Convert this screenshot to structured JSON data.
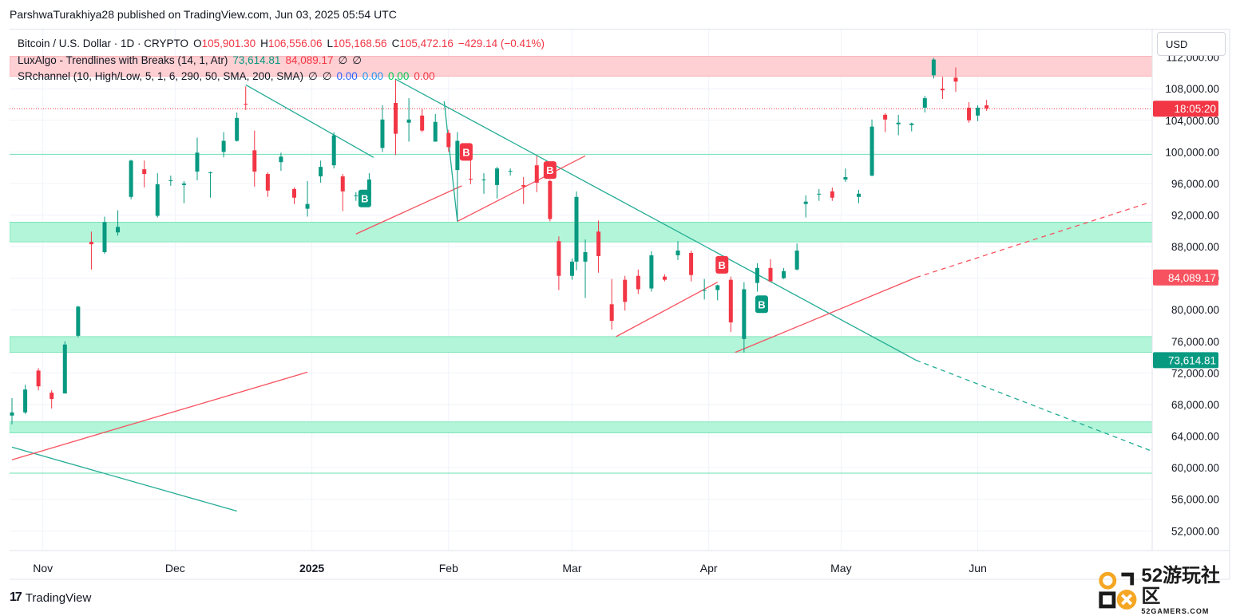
{
  "header": {
    "published_by": "ParshwaTurakhiya28 published on TradingView.com, Jun 03, 2025 05:54 UTC"
  },
  "legend": {
    "symbol": "Bitcoin / U.S. Dollar · 1D · CRYPTO",
    "o_label": "O",
    "o_value": "105,901.30",
    "h_label": "H",
    "h_value": "106,556.06",
    "l_label": "L",
    "l_value": "105,168.56",
    "c_label": "C",
    "c_value": "105,472.16",
    "change": "−429.14 (−0.41%)",
    "luxalgo_name": "LuxAlgo - Trendlines with Breaks (14, 1, Atr)",
    "luxalgo_v1": "73,614.81",
    "luxalgo_v2": "84,089.17",
    "luxalgo_v3": "∅",
    "luxalgo_v4": "∅",
    "sr_name": "SRchannel (10, High/Low, 5, 1, 6, 290, 50, SMA, 200, SMA)",
    "sr_v1": "∅",
    "sr_v2": "∅",
    "sr_v3": "0.00",
    "sr_v4": "0.00",
    "sr_v5": "0.00",
    "sr_v6": "0.00"
  },
  "currency_button": "USD",
  "colors": {
    "up": "#089981",
    "down": "#f23645",
    "support_zone": "#b2f5d9",
    "resistance_zone": "#ffd0d3",
    "trend_down": "#22ab94",
    "trend_up": "#f7525f"
  },
  "price_labels": {
    "countdown": "18:05:20",
    "upper_trend": "84,089.17",
    "lower_trend": "73,614.81"
  },
  "chart_data": {
    "type": "candlestick",
    "title": "Bitcoin / U.S. Dollar · 1D · CRYPTO",
    "y_axis": {
      "ticks": [
        "112,000.00",
        "108,000.00",
        "104,000.00",
        "100,000.00",
        "96,000.00",
        "92,000.00",
        "88,000.00",
        "84,000.00",
        "80,000.00",
        "76,000.00",
        "72,000.00",
        "68,000.00",
        "64,000.00",
        "60,000.00",
        "56,000.00",
        "52,000.00"
      ],
      "ylim": [
        49500,
        115500
      ]
    },
    "x_axis": {
      "ticks": [
        "Nov",
        "Dec",
        "2025",
        "Feb",
        "Mar",
        "Apr",
        "May",
        "Jun"
      ],
      "tick_dates": [
        "2024-11-01",
        "2024-12-01",
        "2025-01-01",
        "2025-02-01",
        "2025-03-01",
        "2025-04-01",
        "2025-05-01",
        "2025-06-01"
      ],
      "xlim": [
        "2024-10-25",
        "2025-07-10"
      ]
    },
    "candles": [
      {
        "d": "2024-10-25",
        "o": 66600,
        "h": 68800,
        "l": 65500,
        "c": 67000
      },
      {
        "d": "2024-10-28",
        "o": 67000,
        "h": 70500,
        "l": 66800,
        "c": 69900
      },
      {
        "d": "2024-10-31",
        "o": 72300,
        "h": 72600,
        "l": 69800,
        "c": 70300
      },
      {
        "d": "2024-11-03",
        "o": 69500,
        "h": 69800,
        "l": 67500,
        "c": 68700
      },
      {
        "d": "2024-11-06",
        "o": 69400,
        "h": 76000,
        "l": 69400,
        "c": 75600
      },
      {
        "d": "2024-11-09",
        "o": 76700,
        "h": 80500,
        "l": 76500,
        "c": 80400
      },
      {
        "d": "2024-11-12",
        "o": 88600,
        "h": 89900,
        "l": 85100,
        "c": 88300
      },
      {
        "d": "2024-11-15",
        "o": 87300,
        "h": 91800,
        "l": 87100,
        "c": 91100
      },
      {
        "d": "2024-11-18",
        "o": 89800,
        "h": 92600,
        "l": 89400,
        "c": 90500
      },
      {
        "d": "2024-11-21",
        "o": 94300,
        "h": 99000,
        "l": 94000,
        "c": 98900
      },
      {
        "d": "2024-11-24",
        "o": 97800,
        "h": 98900,
        "l": 95500,
        "c": 97200
      },
      {
        "d": "2024-11-27",
        "o": 91900,
        "h": 97300,
        "l": 91700,
        "c": 95900
      },
      {
        "d": "2024-11-30",
        "o": 96400,
        "h": 97000,
        "l": 95700,
        "c": 96400
      },
      {
        "d": "2024-12-03",
        "o": 95800,
        "h": 96300,
        "l": 93500,
        "c": 96000
      },
      {
        "d": "2024-12-06",
        "o": 97500,
        "h": 101800,
        "l": 96400,
        "c": 99900
      },
      {
        "d": "2024-12-09",
        "o": 97400,
        "h": 97500,
        "l": 94200,
        "c": 97400
      },
      {
        "d": "2024-12-12",
        "o": 100000,
        "h": 102500,
        "l": 99300,
        "c": 101400
      },
      {
        "d": "2024-12-15",
        "o": 101400,
        "h": 105000,
        "l": 101300,
        "c": 104300
      },
      {
        "d": "2024-12-17",
        "o": 106100,
        "h": 108300,
        "l": 105300,
        "c": 106000
      },
      {
        "d": "2024-12-19",
        "o": 100200,
        "h": 102700,
        "l": 95600,
        "c": 97500
      },
      {
        "d": "2024-12-22",
        "o": 97200,
        "h": 97400,
        "l": 94300,
        "c": 95100
      },
      {
        "d": "2024-12-25",
        "o": 98700,
        "h": 99900,
        "l": 97600,
        "c": 99400
      },
      {
        "d": "2024-12-28",
        "o": 95300,
        "h": 95500,
        "l": 93400,
        "c": 94200
      },
      {
        "d": "2024-12-31",
        "o": 92800,
        "h": 96300,
        "l": 91800,
        "c": 93400
      },
      {
        "d": "2025-01-03",
        "o": 96900,
        "h": 98900,
        "l": 96100,
        "c": 98100
      },
      {
        "d": "2025-01-06",
        "o": 98300,
        "h": 102500,
        "l": 97900,
        "c": 102100
      },
      {
        "d": "2025-01-08",
        "o": 96900,
        "h": 97200,
        "l": 92500,
        "c": 95000
      },
      {
        "d": "2025-01-11",
        "o": 94500,
        "h": 94900,
        "l": 93800,
        "c": 94500
      },
      {
        "d": "2025-01-14",
        "o": 94500,
        "h": 97300,
        "l": 94400,
        "c": 96500
      },
      {
        "d": "2025-01-17",
        "o": 100500,
        "h": 105900,
        "l": 100000,
        "c": 104100
      },
      {
        "d": "2025-01-20",
        "o": 106200,
        "h": 109100,
        "l": 99600,
        "c": 102300
      },
      {
        "d": "2025-01-23",
        "o": 103700,
        "h": 106800,
        "l": 101300,
        "c": 104100
      },
      {
        "d": "2025-01-26",
        "o": 104600,
        "h": 105500,
        "l": 102500,
        "c": 102700
      },
      {
        "d": "2025-01-29",
        "o": 101300,
        "h": 104800,
        "l": 101300,
        "c": 103800
      },
      {
        "d": "2025-02-01",
        "o": 102400,
        "h": 102800,
        "l": 100000,
        "c": 100600
      },
      {
        "d": "2025-02-03",
        "o": 97700,
        "h": 102500,
        "l": 91200,
        "c": 101400
      },
      {
        "d": "2025-02-06",
        "o": 96600,
        "h": 99300,
        "l": 95900,
        "c": 96500
      },
      {
        "d": "2025-02-09",
        "o": 96500,
        "h": 97300,
        "l": 94700,
        "c": 96500
      },
      {
        "d": "2025-02-12",
        "o": 95800,
        "h": 98100,
        "l": 94100,
        "c": 97900
      },
      {
        "d": "2025-02-15",
        "o": 97500,
        "h": 97900,
        "l": 97000,
        "c": 97600
      },
      {
        "d": "2025-02-18",
        "o": 95800,
        "h": 96800,
        "l": 93400,
        "c": 95600
      },
      {
        "d": "2025-02-21",
        "o": 98300,
        "h": 99500,
        "l": 94900,
        "c": 96100
      },
      {
        "d": "2025-02-24",
        "o": 96300,
        "h": 96500,
        "l": 91200,
        "c": 91500
      },
      {
        "d": "2025-02-26",
        "o": 88700,
        "h": 89300,
        "l": 82500,
        "c": 84300
      },
      {
        "d": "2025-03-01",
        "o": 84300,
        "h": 86500,
        "l": 83800,
        "c": 86100
      },
      {
        "d": "2025-03-02",
        "o": 86100,
        "h": 95000,
        "l": 85000,
        "c": 94300
      },
      {
        "d": "2025-03-04",
        "o": 86100,
        "h": 88900,
        "l": 81500,
        "c": 87300
      },
      {
        "d": "2025-03-07",
        "o": 89900,
        "h": 91300,
        "l": 84700,
        "c": 86800
      },
      {
        "d": "2025-03-10",
        "o": 80700,
        "h": 83900,
        "l": 77500,
        "c": 78600
      },
      {
        "d": "2025-03-13",
        "o": 83800,
        "h": 84300,
        "l": 79900,
        "c": 81000
      },
      {
        "d": "2025-03-16",
        "o": 84300,
        "h": 85100,
        "l": 82000,
        "c": 82600
      },
      {
        "d": "2025-03-19",
        "o": 82700,
        "h": 87400,
        "l": 82300,
        "c": 86900
      },
      {
        "d": "2025-03-22",
        "o": 84200,
        "h": 84500,
        "l": 83600,
        "c": 83800
      },
      {
        "d": "2025-03-25",
        "o": 86900,
        "h": 88700,
        "l": 86300,
        "c": 87500
      },
      {
        "d": "2025-03-28",
        "o": 87200,
        "h": 87500,
        "l": 83600,
        "c": 84400
      },
      {
        "d": "2025-03-31",
        "o": 82400,
        "h": 83900,
        "l": 81300,
        "c": 82500
      },
      {
        "d": "2025-04-03",
        "o": 82500,
        "h": 83200,
        "l": 81200,
        "c": 83100
      },
      {
        "d": "2025-04-06",
        "o": 83800,
        "h": 84200,
        "l": 77200,
        "c": 78400
      },
      {
        "d": "2025-04-09",
        "o": 76300,
        "h": 83500,
        "l": 74600,
        "c": 82600
      },
      {
        "d": "2025-04-12",
        "o": 83400,
        "h": 85900,
        "l": 82300,
        "c": 85300
      },
      {
        "d": "2025-04-15",
        "o": 85300,
        "h": 86400,
        "l": 83600,
        "c": 83600
      },
      {
        "d": "2025-04-18",
        "o": 84000,
        "h": 85300,
        "l": 83900,
        "c": 84900
      },
      {
        "d": "2025-04-21",
        "o": 85100,
        "h": 88400,
        "l": 85000,
        "c": 87500
      },
      {
        "d": "2025-04-23",
        "o": 93400,
        "h": 94500,
        "l": 91700,
        "c": 93700
      },
      {
        "d": "2025-04-26",
        "o": 94600,
        "h": 95300,
        "l": 93800,
        "c": 94700
      },
      {
        "d": "2025-04-29",
        "o": 95000,
        "h": 95500,
        "l": 93800,
        "c": 94200
      },
      {
        "d": "2025-05-02",
        "o": 96500,
        "h": 97900,
        "l": 96200,
        "c": 96800
      },
      {
        "d": "2025-05-05",
        "o": 94300,
        "h": 95200,
        "l": 93500,
        "c": 94700
      },
      {
        "d": "2025-05-08",
        "o": 97000,
        "h": 104100,
        "l": 96900,
        "c": 103200
      },
      {
        "d": "2025-05-11",
        "o": 104700,
        "h": 104900,
        "l": 102500,
        "c": 104100
      },
      {
        "d": "2025-05-14",
        "o": 103500,
        "h": 104700,
        "l": 102100,
        "c": 103700
      },
      {
        "d": "2025-05-17",
        "o": 103400,
        "h": 103700,
        "l": 102600,
        "c": 103600
      },
      {
        "d": "2025-05-20",
        "o": 105600,
        "h": 107100,
        "l": 105000,
        "c": 106800
      },
      {
        "d": "2025-05-22",
        "o": 109700,
        "h": 111900,
        "l": 109300,
        "c": 111700
      },
      {
        "d": "2025-05-24",
        "o": 108000,
        "h": 109500,
        "l": 106700,
        "c": 107800
      },
      {
        "d": "2025-05-27",
        "o": 109400,
        "h": 110700,
        "l": 107600,
        "c": 108900
      },
      {
        "d": "2025-05-30",
        "o": 105600,
        "h": 106300,
        "l": 103700,
        "c": 104000
      },
      {
        "d": "2025-06-01",
        "o": 104600,
        "h": 105900,
        "l": 103900,
        "c": 105600
      },
      {
        "d": "2025-06-03",
        "o": 105900,
        "h": 106600,
        "l": 105200,
        "c": 105500
      }
    ],
    "zones": [
      {
        "kind": "resistance",
        "from": 109600,
        "to": 112100
      },
      {
        "kind": "support",
        "from": 88600,
        "to": 91100
      },
      {
        "kind": "support",
        "from": 74600,
        "to": 76600
      },
      {
        "kind": "support",
        "from": 64400,
        "to": 65800
      }
    ],
    "levels": [
      {
        "kind": "support-line",
        "price": 99700
      },
      {
        "kind": "support-line",
        "price": 59300
      },
      {
        "kind": "last-price",
        "price": 105472
      }
    ],
    "trendlines": [
      {
        "kind": "down",
        "start": [
          "2024-12-17",
          108500
        ],
        "end": [
          "2025-01-15",
          99300
        ]
      },
      {
        "kind": "down",
        "start": [
          "2025-01-20",
          109200
        ],
        "end": [
          "2025-05-18",
          73614
        ]
      },
      {
        "kind": "down-ext",
        "start": [
          "2025-05-18",
          73614
        ],
        "end": [
          "2025-07-10",
          62200
        ]
      },
      {
        "kind": "down",
        "start": [
          "2024-10-25",
          62600
        ],
        "end": [
          "2024-12-15",
          54500
        ]
      },
      {
        "kind": "up",
        "start": [
          "2024-10-25",
          61000
        ],
        "end": [
          "2024-12-31",
          72100
        ]
      },
      {
        "kind": "up",
        "start": [
          "2025-01-11",
          89600
        ],
        "end": [
          "2025-02-04",
          95700
        ]
      },
      {
        "kind": "up",
        "start": [
          "2025-02-03",
          91200
        ],
        "end": [
          "2025-03-04",
          99500
        ]
      },
      {
        "kind": "up",
        "start": [
          "2025-03-11",
          76600
        ],
        "end": [
          "2025-04-03",
          83500
        ]
      },
      {
        "kind": "up",
        "start": [
          "2025-04-07",
          74600
        ],
        "end": [
          "2025-05-18",
          84089
        ]
      },
      {
        "kind": "up-ext",
        "start": [
          "2025-05-18",
          84089
        ],
        "end": [
          "2025-07-10",
          93600
        ]
      },
      {
        "kind": "down",
        "start": [
          "2025-01-31",
          106400
        ],
        "end": [
          "2025-02-03",
          91200
        ]
      }
    ],
    "break_markers": [
      {
        "label": "B",
        "kind": "buy",
        "date": "2025-01-13",
        "price": 94100
      },
      {
        "label": "B",
        "kind": "sell",
        "date": "2025-02-05",
        "price": 100000
      },
      {
        "label": "B",
        "kind": "sell",
        "date": "2025-02-24",
        "price": 97700
      },
      {
        "label": "B",
        "kind": "sell",
        "date": "2025-04-04",
        "price": 85700
      },
      {
        "label": "B",
        "kind": "buy",
        "date": "2025-04-13",
        "price": 80700
      }
    ]
  },
  "watermark": {
    "big": "52游玩社区",
    "small": "52GAMERS.COM"
  },
  "footer": {
    "logo_mark": "17",
    "logo_text": "TradingView"
  }
}
